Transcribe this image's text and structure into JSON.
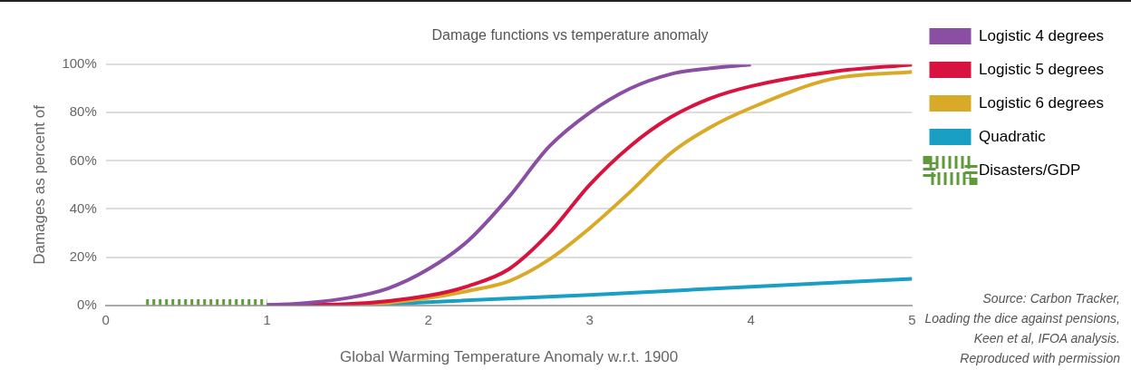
{
  "chart_data": {
    "type": "line",
    "title": "Damage functions vs temperature anomaly",
    "xlabel": "Global Warming Temperature Anomaly w.r.t. 1900",
    "ylabel": "Damages as percent of",
    "xlim": [
      0,
      5
    ],
    "xticks": [
      0,
      1,
      2,
      3,
      4,
      5
    ],
    "ylim": [
      0,
      100
    ],
    "yticks": [
      {
        "value": 0,
        "label": "0%"
      },
      {
        "value": 20,
        "label": "20%"
      },
      {
        "value": 40,
        "label": "40%"
      },
      {
        "value": 60,
        "label": "60%"
      },
      {
        "value": 80,
        "label": "80%"
      },
      {
        "value": 100,
        "label": "100%"
      }
    ],
    "grid": "y",
    "legend": "right",
    "marker": "none",
    "series": [
      {
        "name": "Logistic 4 degrees",
        "color": "#8a4fa3",
        "x": [
          1,
          1.25,
          1.5,
          1.75,
          2,
          2.25,
          2.5,
          2.75,
          3,
          3.25,
          3.5,
          3.75,
          4
        ],
        "values": [
          0,
          1,
          3,
          7,
          15,
          27,
          45,
          66,
          80,
          90,
          96,
          98.5,
          100
        ]
      },
      {
        "name": "Logistic 5 degrees",
        "color": "#d9133f",
        "x": [
          1,
          1.5,
          2,
          2.25,
          2.5,
          2.75,
          3,
          3.25,
          3.5,
          3.75,
          4,
          4.5,
          5
        ],
        "values": [
          0,
          0.5,
          4,
          8,
          15,
          30,
          50,
          66,
          78,
          86,
          91,
          97,
          100
        ]
      },
      {
        "name": "Logistic 6 degrees",
        "color": "#d9aa28",
        "x": [
          1.5,
          1.75,
          2,
          2.25,
          2.5,
          2.75,
          3,
          3.25,
          3.5,
          3.75,
          4,
          4.5,
          5
        ],
        "values": [
          0,
          1,
          3,
          6,
          10,
          19,
          32,
          47,
          63,
          74,
          82,
          94,
          97
        ]
      },
      {
        "name": "Quadratic",
        "color": "#1a9fc4",
        "x": [
          1,
          1.5,
          2,
          3,
          4,
          5
        ],
        "values": [
          0,
          0,
          1.3,
          4.3,
          7.7,
          11
        ]
      },
      {
        "name": "Disasters/GDP",
        "color": "#5f9a3a",
        "line_style": "dashed",
        "x": [
          0.25,
          1
        ],
        "values": [
          0,
          0
        ]
      }
    ],
    "annotations": [
      "Source: Carbon Tracker,\nLoading the dice against pensions,\nKeen et al, IFOA analysis.\nReproduced with permission"
    ]
  }
}
